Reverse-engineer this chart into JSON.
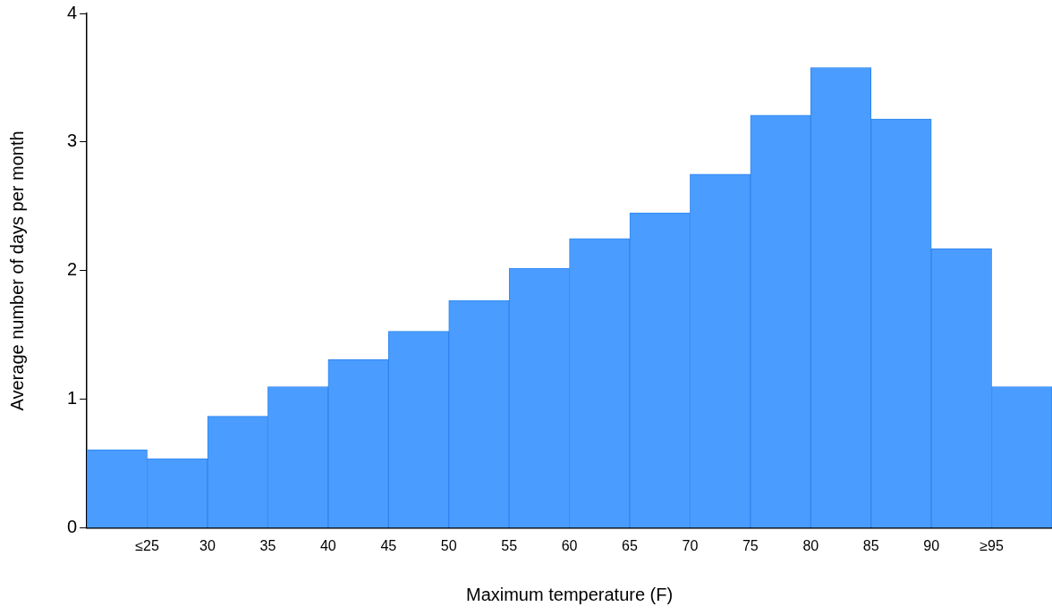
{
  "chart_data": {
    "type": "histogram",
    "xlabel": "Maximum temperature (F)",
    "ylabel": "Average number of days per month",
    "bins": [
      20,
      25,
      30,
      35,
      40,
      45,
      50,
      55,
      60,
      65,
      70,
      75,
      80,
      85,
      90,
      95,
      100
    ],
    "values": [
      0.61,
      0.54,
      0.87,
      1.1,
      1.31,
      1.53,
      1.77,
      2.02,
      2.25,
      2.45,
      2.75,
      3.21,
      3.58,
      3.18,
      2.17,
      1.1
    ],
    "color": "#4a9cff",
    "xlim": [
      20,
      100
    ],
    "xticks": [
      {
        "value": 25,
        "label": "≤25"
      },
      30,
      35,
      40,
      45,
      50,
      55,
      60,
      65,
      70,
      75,
      80,
      85,
      90,
      {
        "value": 95,
        "label": "≥95"
      }
    ],
    "ylim": [
      0,
      4
    ],
    "yticks": [
      0,
      1,
      2,
      3,
      4
    ],
    "grid": false,
    "legend": false
  }
}
